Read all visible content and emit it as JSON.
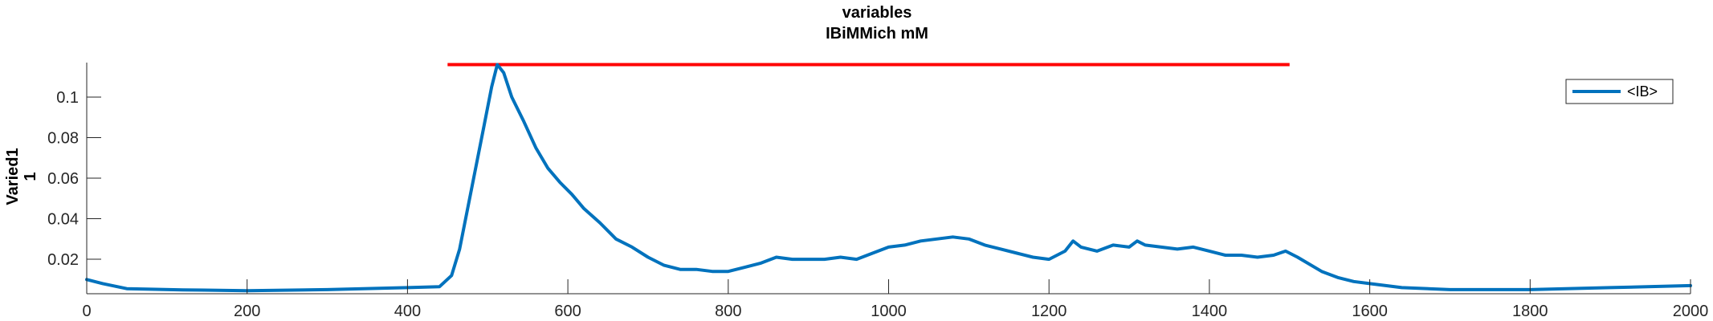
{
  "chart_data": {
    "type": "line",
    "title": [
      "variables",
      "IBiMMich mM"
    ],
    "ylabel": [
      "Varied1",
      "1"
    ],
    "xlabel": "",
    "xlim": [
      0,
      2000
    ],
    "ylim": [
      0.003,
      0.117
    ],
    "xticks": [
      "0",
      "200",
      "400",
      "600",
      "800",
      "1000",
      "1200",
      "1400",
      "1600",
      "1800",
      "2000"
    ],
    "yticks": [
      "0.02",
      "0.04",
      "0.06",
      "0.08",
      "0.1"
    ],
    "grid": false,
    "legend": "top-right",
    "colors": {
      "series": "#0072BD",
      "reference": "#FF0000",
      "axis": "#262626"
    },
    "series": [
      {
        "name": "<IB>",
        "x": [
          0,
          20,
          50,
          80,
          120,
          200,
          300,
          400,
          440,
          455,
          465,
          475,
          485,
          495,
          505,
          512,
          520,
          530,
          545,
          560,
          575,
          590,
          605,
          620,
          640,
          660,
          680,
          700,
          720,
          740,
          760,
          780,
          800,
          820,
          840,
          860,
          880,
          900,
          920,
          940,
          960,
          980,
          1000,
          1020,
          1040,
          1060,
          1080,
          1100,
          1120,
          1140,
          1160,
          1180,
          1200,
          1220,
          1230,
          1240,
          1260,
          1280,
          1300,
          1310,
          1320,
          1340,
          1360,
          1380,
          1400,
          1420,
          1440,
          1460,
          1480,
          1495,
          1510,
          1540,
          1560,
          1580,
          1600,
          1620,
          1640,
          1700,
          1800,
          1900,
          2000
        ],
        "values": [
          0.01,
          0.008,
          0.0055,
          0.0052,
          0.0049,
          0.0045,
          0.005,
          0.006,
          0.0065,
          0.012,
          0.025,
          0.045,
          0.065,
          0.085,
          0.105,
          0.116,
          0.112,
          0.1,
          0.088,
          0.075,
          0.065,
          0.058,
          0.052,
          0.045,
          0.038,
          0.03,
          0.026,
          0.021,
          0.017,
          0.015,
          0.015,
          0.014,
          0.014,
          0.016,
          0.018,
          0.021,
          0.02,
          0.02,
          0.02,
          0.021,
          0.02,
          0.023,
          0.026,
          0.027,
          0.029,
          0.03,
          0.031,
          0.03,
          0.027,
          0.025,
          0.023,
          0.021,
          0.02,
          0.024,
          0.029,
          0.026,
          0.024,
          0.027,
          0.026,
          0.029,
          0.027,
          0.026,
          0.025,
          0.026,
          0.024,
          0.022,
          0.022,
          0.021,
          0.022,
          0.024,
          0.021,
          0.014,
          0.011,
          0.009,
          0.008,
          0.007,
          0.006,
          0.005,
          0.005,
          0.006,
          0.007
        ]
      }
    ],
    "reference_line": {
      "x": [
        450,
        1500
      ],
      "y": 0.116
    }
  }
}
